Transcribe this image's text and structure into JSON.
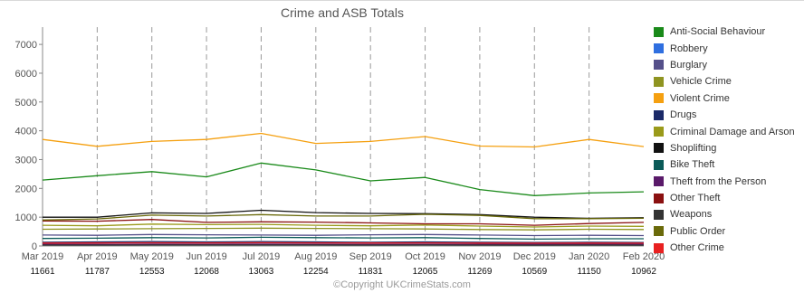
{
  "chart_data": {
    "type": "line",
    "title": "Crime and ASB Totals",
    "categories": [
      "Mar 2019",
      "Apr 2019",
      "May 2019",
      "Jun 2019",
      "Jul 2019",
      "Aug 2019",
      "Sep 2019",
      "Oct 2019",
      "Nov 2019",
      "Dec 2019",
      "Jan 2020",
      "Feb 2020"
    ],
    "totals": [
      "11661",
      "11787",
      "12553",
      "12068",
      "13063",
      "12254",
      "11831",
      "12065",
      "11269",
      "10569",
      "11150",
      "10962"
    ],
    "yticks": [
      0,
      1000,
      2000,
      3000,
      4000,
      5000,
      6000,
      7000
    ],
    "ylim": [
      0,
      7600
    ],
    "grid": "vertical-dashed",
    "legend_position": "right",
    "series": [
      {
        "name": "Anti-Social Behaviour",
        "color": "#1a8a1a",
        "values": [
          2290,
          2440,
          2580,
          2400,
          2880,
          2640,
          2260,
          2380,
          1960,
          1750,
          1840,
          1880
        ]
      },
      {
        "name": "Robbery",
        "color": "#2f6fe0",
        "values": [
          50,
          55,
          60,
          52,
          58,
          55,
          50,
          56,
          52,
          48,
          50,
          48
        ]
      },
      {
        "name": "Burglary",
        "color": "#55508a",
        "values": [
          380,
          370,
          400,
          390,
          380,
          370,
          390,
          400,
          380,
          360,
          370,
          360
        ]
      },
      {
        "name": "Vehicle Crime",
        "color": "#8f9421",
        "values": [
          580,
          590,
          600,
          610,
          620,
          610,
          600,
          590,
          570,
          560,
          580,
          570
        ]
      },
      {
        "name": "Violent Crime",
        "color": "#f5a010",
        "values": [
          3700,
          3460,
          3630,
          3700,
          3910,
          3560,
          3630,
          3800,
          3470,
          3440,
          3700,
          3450
        ]
      },
      {
        "name": "Drugs",
        "color": "#1b2a68",
        "values": [
          130,
          140,
          150,
          140,
          150,
          140,
          130,
          140,
          130,
          120,
          130,
          120
        ]
      },
      {
        "name": "Criminal Damage and Arson",
        "color": "#9a9a1a",
        "values": [
          720,
          700,
          760,
          740,
          750,
          720,
          700,
          730,
          690,
          660,
          690,
          680
        ]
      },
      {
        "name": "Shoplifting",
        "color": "#111111",
        "values": [
          1000,
          1000,
          1150,
          1130,
          1240,
          1160,
          1130,
          1120,
          1090,
          1000,
          960,
          980
        ]
      },
      {
        "name": "Bike Theft",
        "color": "#0a5a58",
        "values": [
          260,
          270,
          290,
          280,
          300,
          290,
          280,
          290,
          260,
          240,
          250,
          250
        ]
      },
      {
        "name": "Theft from the Person",
        "color": "#5a1a6a",
        "values": [
          60,
          58,
          65,
          62,
          66,
          62,
          60,
          64,
          60,
          55,
          58,
          56
        ]
      },
      {
        "name": "Other Theft",
        "color": "#8a1010",
        "values": [
          870,
          860,
          920,
          820,
          840,
          830,
          800,
          770,
          770,
          720,
          780,
          820
        ]
      },
      {
        "name": "Weapons",
        "color": "#333333",
        "values": [
          30,
          32,
          35,
          33,
          36,
          34,
          32,
          34,
          31,
          29,
          30,
          29
        ]
      },
      {
        "name": "Public Order",
        "color": "#6a6a0a",
        "values": [
          900,
          940,
          1070,
          1040,
          1090,
          1040,
          1040,
          1100,
          1060,
          950,
          950,
          960
        ]
      },
      {
        "name": "Other Crime",
        "color": "#e82020",
        "values": [
          100,
          105,
          110,
          108,
          112,
          108,
          104,
          108,
          102,
          96,
          100,
          98
        ]
      }
    ]
  },
  "footer": {
    "copyright": "©Copyright UKCrimeStats.com"
  }
}
